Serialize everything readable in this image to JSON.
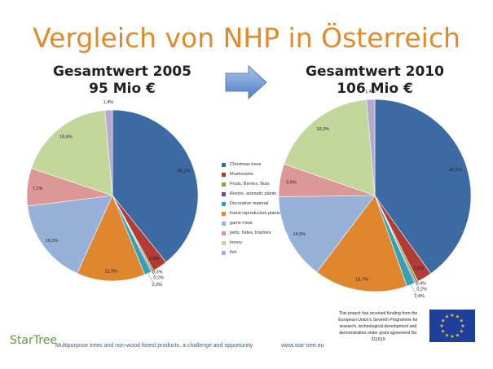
{
  "slide": {
    "title": "Vergleich von NHP in Österreich",
    "chart1_heading_line1": "Gesamtwert 2005",
    "chart1_heading_line2": "95 Mio €",
    "chart2_heading_line1": "Gesamtwert 2010",
    "chart2_heading_line2": "106 Mio €",
    "footer_text": "Multipurpose trees and non-wood forest products, a challenge and opportunity",
    "footer_url": "www.star-tree.eu",
    "eu_text": "This project has received funding from the European Union's Seventh Programme for research, technological development and demonstration under grant agreement No 311919",
    "logo_text": "StarTree",
    "colors": {
      "title": "#e08a2c",
      "footer": "#3a5f8a",
      "logo": "#5aa03c",
      "eu_flag": "#1f3f9c",
      "eu_stars": "#f7d117"
    }
  },
  "chart_data": [
    {
      "type": "pie",
      "title": "Gesamtwert 2005 95 Mio €",
      "categories": [
        "Christmas trees",
        "Mushrooms",
        "Fruits, Berries, Nuts",
        "Resins, aromatic plants",
        "Decorative material",
        "forest reproductive plants",
        "game meat",
        "pelts, hides, trophies",
        "honey",
        "fish"
      ],
      "values": [
        39.1,
        2.8,
        0.3,
        0.2,
        1.3,
        12.9,
        16.2,
        7.1,
        18.4,
        1.4
      ],
      "labels": [
        "39,1%",
        "2,8%",
        "0,3%",
        "0,2%",
        "1,3%",
        "12,9%",
        "16,2%",
        "7,1%",
        "18,4%",
        "1,4%"
      ],
      "colors": [
        "#3c6aa2",
        "#b23b36",
        "#86a63e",
        "#6a4c8e",
        "#33a0b8",
        "#e0862f",
        "#98b1d8",
        "#dc9897",
        "#c3d79b",
        "#b6a8cf"
      ]
    },
    {
      "type": "pie",
      "title": "Gesamtwert 2010 106 Mio €",
      "categories": [
        "Christmas trees",
        "Mushrooms",
        "Fruits, Berries, Nuts",
        "Resins, aromatic plants",
        "Decorative material",
        "forest reproductive plants",
        "game meat",
        "pelts, hides, trophies",
        "honey",
        "fish"
      ],
      "values": [
        40.1,
        2.5,
        0.4,
        0.2,
        1.4,
        15.7,
        14.5,
        5.5,
        18.3,
        1.4
      ],
      "labels": [
        "40,1%",
        "2,5%",
        "0,4%",
        "0,2%",
        "1,4%",
        "15,7%",
        "14,5%",
        "5,5%",
        "18,3%",
        "1,4%"
      ],
      "colors": [
        "#3c6aa2",
        "#b23b36",
        "#86a63e",
        "#6a4c8e",
        "#33a0b8",
        "#e0862f",
        "#98b1d8",
        "#dc9897",
        "#c3d79b",
        "#b6a8cf"
      ]
    }
  ],
  "legend": {
    "items": [
      "Christmas trees",
      "Mushrooms",
      "Fruits, Berries, Nuts",
      "Resins, aromatic plants",
      "Decorative material",
      "forest reproductive plants",
      "game meat",
      "pelts, hides, trophies",
      "honey",
      "fish"
    ]
  }
}
